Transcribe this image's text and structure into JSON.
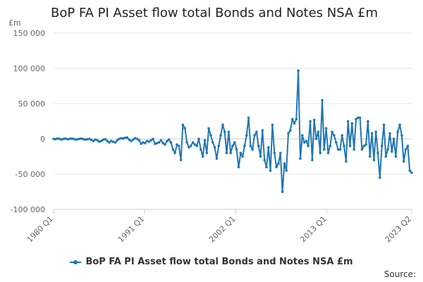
{
  "title": "BoP FA PI Asset flow total Bonds and Notes NSA £m",
  "source_label": "Source:",
  "colors": {
    "series": "#1f77b4",
    "grid": "#e6e6e6",
    "axis": "#cccccc"
  },
  "chart_data": {
    "type": "line",
    "title": "BoP FA PI Asset flow total Bonds and Notes NSA £m",
    "ylabel": "£m",
    "ylim": [
      -100000,
      150000
    ],
    "yticks": [
      150000,
      100000,
      50000,
      0,
      -50000,
      -100000
    ],
    "ytick_labels": [
      "150 000",
      "100 000",
      "50 000",
      "0",
      "-50 000",
      "-100 000"
    ],
    "xlabel": "",
    "xticks": [
      "1980 Q1",
      "1991 Q1",
      "2002 Q1",
      "2013 Q1",
      "2023 Q2"
    ],
    "grid": true,
    "legend": "bottom",
    "series": [
      {
        "name": "BoP FA PI Asset flow total Bonds and Notes NSA £m",
        "x_range": [
          "1980 Q1",
          "2023 Q2"
        ],
        "values": [
          0,
          -500,
          500,
          0,
          -1000,
          0,
          500,
          -500,
          0,
          500,
          0,
          -1000,
          -500,
          0,
          500,
          -500,
          -1000,
          -500,
          0,
          -1500,
          -3000,
          -1000,
          -2000,
          -4000,
          -3000,
          -1000,
          -500,
          -3000,
          -5000,
          -3000,
          -4000,
          -5000,
          -2000,
          0,
          1000,
          500,
          1500,
          2000,
          -1000,
          -3000,
          -1000,
          1000,
          0,
          -2000,
          -7000,
          -5000,
          -6000,
          -3000,
          -4000,
          -2000,
          0,
          -7000,
          -6000,
          -5000,
          -2000,
          -6000,
          -8000,
          -3000,
          -1000,
          -5000,
          -15000,
          -20000,
          -8000,
          -10000,
          -30000,
          20000,
          15000,
          -5000,
          -12000,
          -10000,
          -5000,
          -8000,
          -10000,
          0,
          -15000,
          -25000,
          -2000,
          -20000,
          15000,
          5000,
          -5000,
          -12000,
          -28000,
          -10000,
          5000,
          20000,
          10000,
          -20000,
          10000,
          -20000,
          -10000,
          -5000,
          -15000,
          -40000,
          -20000,
          -25000,
          -10000,
          5000,
          30000,
          -10000,
          -15000,
          5000,
          10000,
          -10000,
          -25000,
          12000,
          -30000,
          -40000,
          -12000,
          -45000,
          20000,
          -20000,
          -40000,
          -35000,
          -20000,
          -75000,
          -35000,
          -45000,
          8000,
          12000,
          28000,
          22000,
          28000,
          97000,
          -28000,
          5000,
          -5000,
          -3000,
          -10000,
          25000,
          -30000,
          27000,
          0,
          10000,
          -20000,
          55000,
          -15000,
          15000,
          -20000,
          -10000,
          10000,
          5000,
          -5000,
          -15000,
          -15000,
          5000,
          -10000,
          -32000,
          25000,
          -10000,
          22000,
          -15000,
          28000,
          30000,
          30000,
          -15000,
          -10000,
          -8000,
          25000,
          -25000,
          8000,
          -30000,
          10000,
          -20000,
          -55000,
          -10000,
          20000,
          -25000,
          -15000,
          8000,
          -18000,
          0,
          -25000,
          10000,
          20000,
          5000,
          -32000,
          -15000,
          -10000,
          -45000,
          -48000
        ]
      }
    ]
  }
}
